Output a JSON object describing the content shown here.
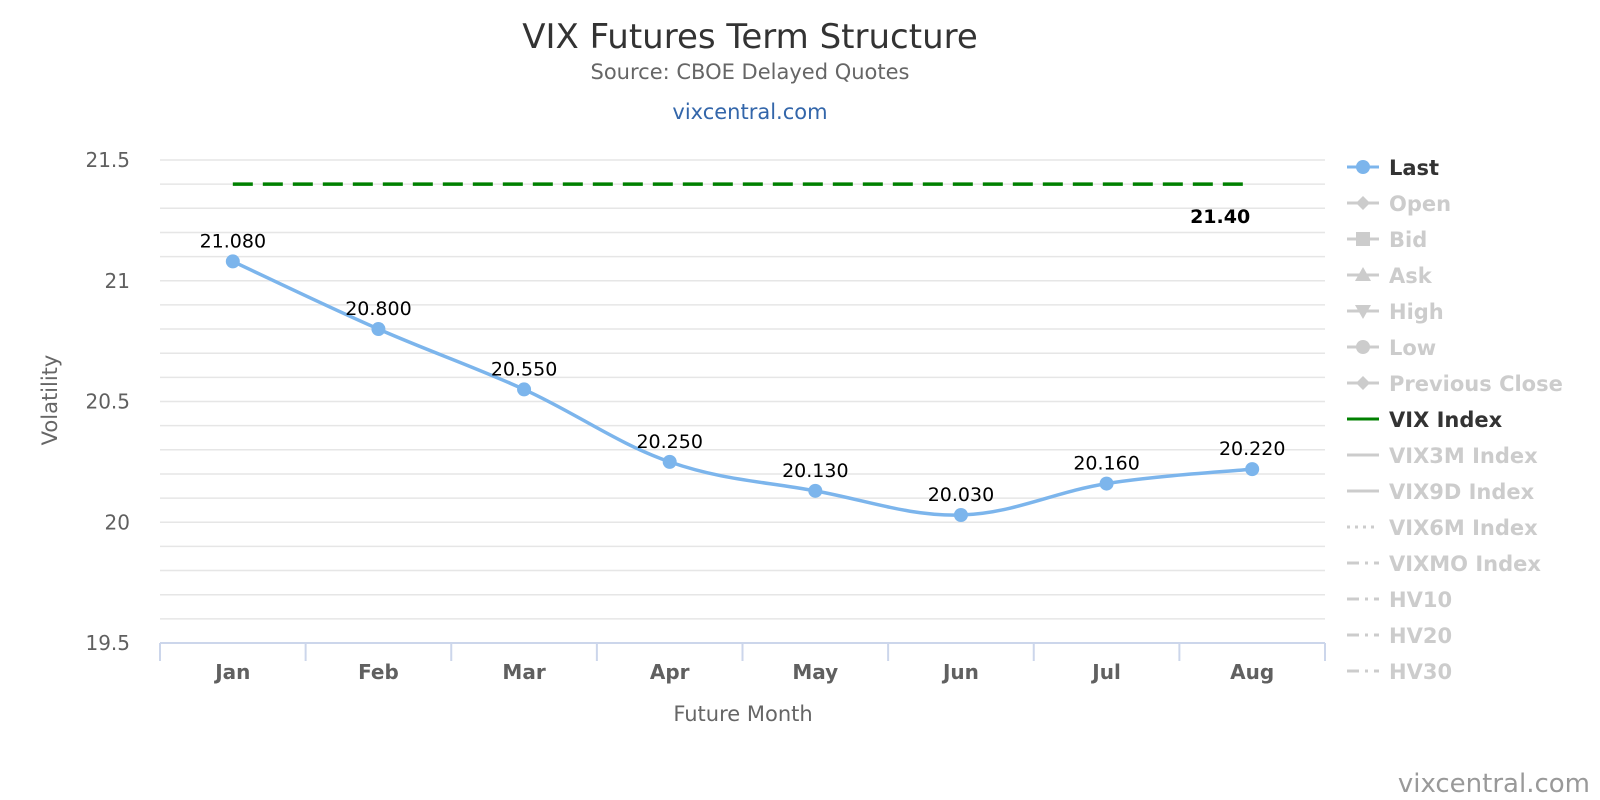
{
  "chart_data": {
    "type": "line",
    "title": "VIX Futures Term Structure",
    "subtitle": "Source: CBOE Delayed Quotes",
    "link_text": "vixcentral.com",
    "credit": "vixcentral.com",
    "xlabel": "Future Month",
    "ylabel": "Volatility",
    "categories": [
      "Jan",
      "Feb",
      "Mar",
      "Apr",
      "May",
      "Jun",
      "Jul",
      "Aug"
    ],
    "ylim": [
      19.5,
      21.5
    ],
    "yticks": [
      "19.5",
      "20",
      "20.5",
      "21",
      "21.5"
    ],
    "grid": true,
    "legend_position": "right",
    "series": [
      {
        "name": "Last",
        "style": "smooth-line-markers",
        "color": "#7cb5ec",
        "values": [
          21.08,
          20.8,
          20.55,
          20.25,
          20.13,
          20.03,
          20.16,
          20.22
        ],
        "labels": [
          "21.080",
          "20.800",
          "20.550",
          "20.250",
          "20.130",
          "20.030",
          "20.160",
          "20.220"
        ]
      },
      {
        "name": "VIX Index",
        "style": "dashed",
        "color": "#008000",
        "values": [
          21.4,
          21.4,
          21.4,
          21.4,
          21.4,
          21.4,
          21.4,
          21.4
        ],
        "end_label": "21.40"
      }
    ],
    "legend": [
      {
        "name": "Last",
        "active": true,
        "symbol": "circle",
        "line": "solid",
        "color": "#7cb5ec"
      },
      {
        "name": "Open",
        "active": false,
        "symbol": "diamond",
        "line": "solid",
        "color": "#cccccc"
      },
      {
        "name": "Bid",
        "active": false,
        "symbol": "square",
        "line": "solid",
        "color": "#cccccc"
      },
      {
        "name": "Ask",
        "active": false,
        "symbol": "triangle",
        "line": "solid",
        "color": "#cccccc"
      },
      {
        "name": "High",
        "active": false,
        "symbol": "triangle-down",
        "line": "solid",
        "color": "#cccccc"
      },
      {
        "name": "Low",
        "active": false,
        "symbol": "circle",
        "line": "solid",
        "color": "#cccccc"
      },
      {
        "name": "Previous Close",
        "active": false,
        "symbol": "diamond",
        "line": "solid",
        "color": "#cccccc"
      },
      {
        "name": "VIX Index",
        "active": true,
        "symbol": "none",
        "line": "solid",
        "color": "#008000"
      },
      {
        "name": "VIX3M Index",
        "active": false,
        "symbol": "none",
        "line": "solid",
        "color": "#cccccc"
      },
      {
        "name": "VIX9D Index",
        "active": false,
        "symbol": "none",
        "line": "solid",
        "color": "#cccccc"
      },
      {
        "name": "VIX6M Index",
        "active": false,
        "symbol": "none",
        "line": "dotted",
        "color": "#cccccc"
      },
      {
        "name": "VIXMO Index",
        "active": false,
        "symbol": "none",
        "line": "dashdot",
        "color": "#cccccc"
      },
      {
        "name": "HV10",
        "active": false,
        "symbol": "none",
        "line": "dashdot",
        "color": "#cccccc"
      },
      {
        "name": "HV20",
        "active": false,
        "symbol": "none",
        "line": "dashdot",
        "color": "#cccccc"
      },
      {
        "name": "HV30",
        "active": false,
        "symbol": "none",
        "line": "dashdot",
        "color": "#cccccc"
      }
    ],
    "colors": {
      "active_legend_text": "#333333",
      "inactive_legend_text": "#cccccc",
      "grid": "#e6e6e6",
      "axis": "#ccd6eb"
    }
  }
}
